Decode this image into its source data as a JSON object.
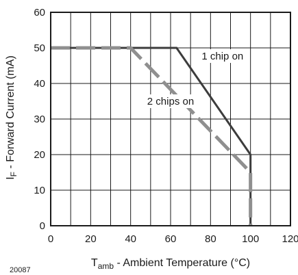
{
  "chart_data": {
    "type": "line",
    "xlabel": {
      "main": "T",
      "sub": "amb",
      "rest": " - Ambient Temperature (°C)"
    },
    "ylabel": {
      "main": "I",
      "sub": "F",
      "rest": " - Forward Current (mA)"
    },
    "xlim": [
      0,
      120
    ],
    "ylim": [
      0,
      60
    ],
    "x_ticks": [
      0,
      20,
      40,
      60,
      80,
      100,
      120
    ],
    "y_ticks": [
      0,
      10,
      20,
      30,
      40,
      50,
      60
    ],
    "x_grid_step": 10,
    "y_grid_step": 10,
    "grid": true,
    "figure_code": "20087",
    "series": [
      {
        "name": "1 chip on",
        "style": "solid",
        "color": "#3c3c3c",
        "points": [
          [
            0,
            50
          ],
          [
            63,
            50
          ],
          [
            100,
            20
          ],
          [
            100,
            0
          ]
        ]
      },
      {
        "name": "2 chips on",
        "style": "dashed",
        "color": "#8f8f8f",
        "points": [
          [
            0,
            50
          ],
          [
            40,
            50
          ],
          [
            100,
            15
          ],
          [
            100,
            0
          ]
        ]
      }
    ],
    "annotations": [
      {
        "text": "1 chip on",
        "x": 86,
        "y": 47.7
      },
      {
        "text": "2 chips on",
        "x": 60,
        "y": 35
      }
    ]
  }
}
